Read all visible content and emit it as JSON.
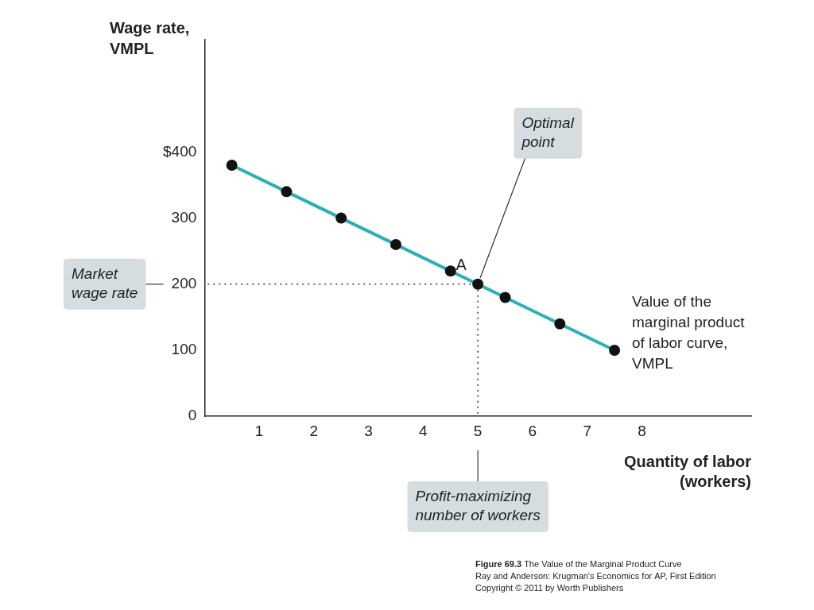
{
  "chart_data": {
    "type": "line",
    "title": "Figure 69.3 The Value of the Marginal Product Curve",
    "subtitle": [
      "Ray and Anderson: Krugman's Economics for AP, First Edition",
      "Copyright © 2011 by Worth Publishers"
    ],
    "x_label": "Quantity of labor (workers)",
    "y_label": "Wage rate, VMPL",
    "x": [
      0.5,
      1.5,
      2.5,
      3.5,
      4.5,
      5,
      5.5,
      6.5,
      7.5
    ],
    "series": [
      {
        "name": "Value of the marginal product of labor curve, VMPL",
        "color": "#2bb0b5",
        "marker": "circle",
        "line_style": "solid",
        "values": [
          380,
          340,
          300,
          260,
          220,
          200,
          180,
          140,
          100
        ]
      }
    ],
    "xlim": [
      0,
      10
    ],
    "xticks": [
      1,
      2,
      3,
      4,
      5,
      6,
      7,
      8
    ],
    "ylim": [
      0,
      570
    ],
    "yticks": [
      0,
      100,
      200,
      300,
      {
        "value": 400,
        "label": "$400"
      }
    ],
    "grid": false,
    "point_label": {
      "text": "A",
      "x": 5,
      "y": 200
    },
    "point_note": "Optimal point",
    "y_note": {
      "text": "Market wage rate",
      "y": 200
    },
    "x_note": {
      "text": "Profit-maximizing number of workers",
      "x": 5
    }
  }
}
